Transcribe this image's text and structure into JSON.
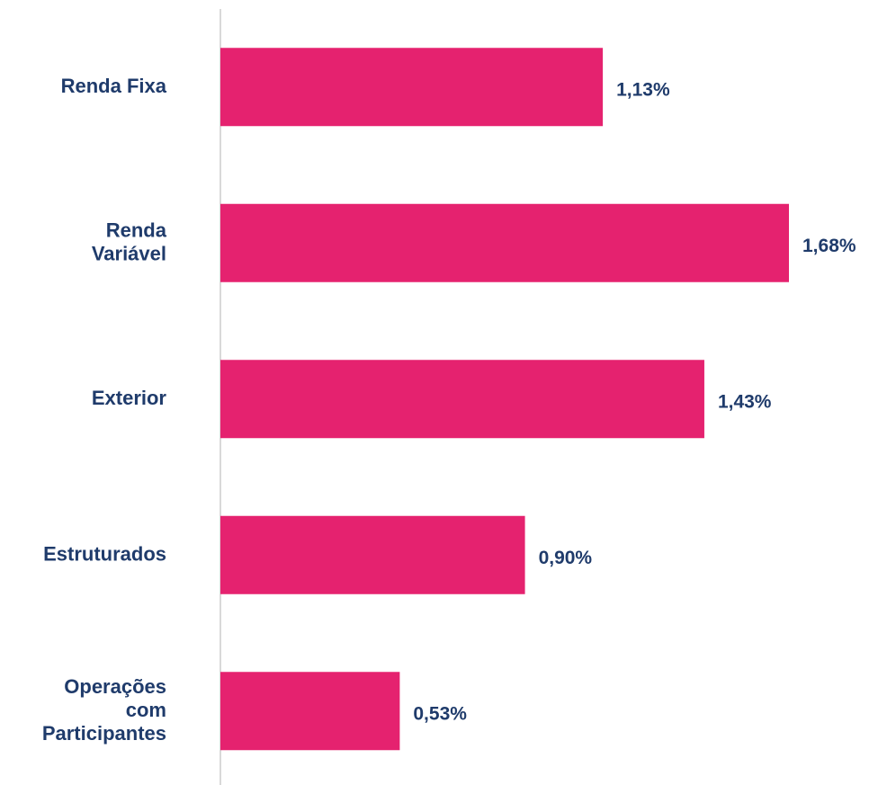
{
  "chart_data": {
    "type": "bar",
    "orientation": "horizontal",
    "categories": [
      "Renda Fixa",
      "Renda\nVariável",
      "Exterior",
      "Estruturados",
      "Operações\ncom\nParticipantes"
    ],
    "values": [
      1.13,
      1.68,
      1.43,
      0.9,
      0.53
    ],
    "value_labels": [
      "1,13%",
      "1,68%",
      "1,43%",
      "0,90%",
      "0,53%"
    ],
    "color": "#e5226f"
  }
}
